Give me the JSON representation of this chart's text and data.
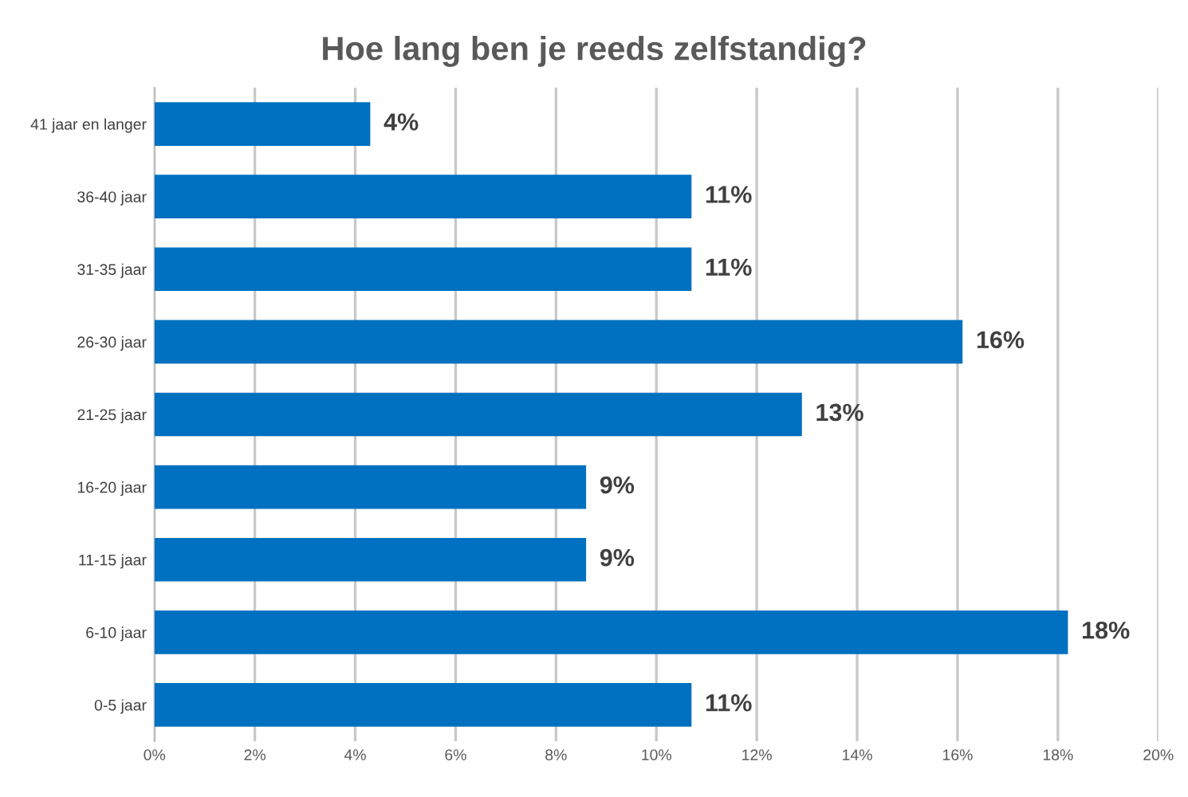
{
  "chart_data": {
    "type": "bar",
    "orientation": "horizontal",
    "title": "Hoe lang ben je reeds zelfstandig?",
    "categories": [
      "41 jaar en langer",
      "36-40 jaar",
      "31-35 jaar",
      "26-30 jaar",
      "21-25 jaar",
      "16-20 jaar",
      "11-15 jaar",
      "6-10 jaar",
      "0-5 jaar"
    ],
    "values": [
      4.3,
      10.7,
      10.7,
      16.1,
      12.9,
      8.6,
      8.6,
      18.2,
      10.7
    ],
    "value_labels": [
      "4%",
      "11%",
      "11%",
      "16%",
      "13%",
      "9%",
      "9%",
      "18%",
      "11%"
    ],
    "color": "#0070c0",
    "xlim": [
      0,
      20
    ],
    "xticks": [
      {
        "value": 0,
        "label": "0%"
      },
      {
        "value": 2,
        "label": "2%"
      },
      {
        "value": 4,
        "label": "4%"
      },
      {
        "value": 6,
        "label": "6%"
      },
      {
        "value": 8,
        "label": "8%"
      },
      {
        "value": 10,
        "label": "10%"
      },
      {
        "value": 12,
        "label": "12%"
      },
      {
        "value": 14,
        "label": "14%"
      },
      {
        "value": 16,
        "label": "16%"
      },
      {
        "value": 18,
        "label": "18%"
      },
      {
        "value": 20,
        "label": "20%"
      }
    ],
    "grid": "x"
  }
}
